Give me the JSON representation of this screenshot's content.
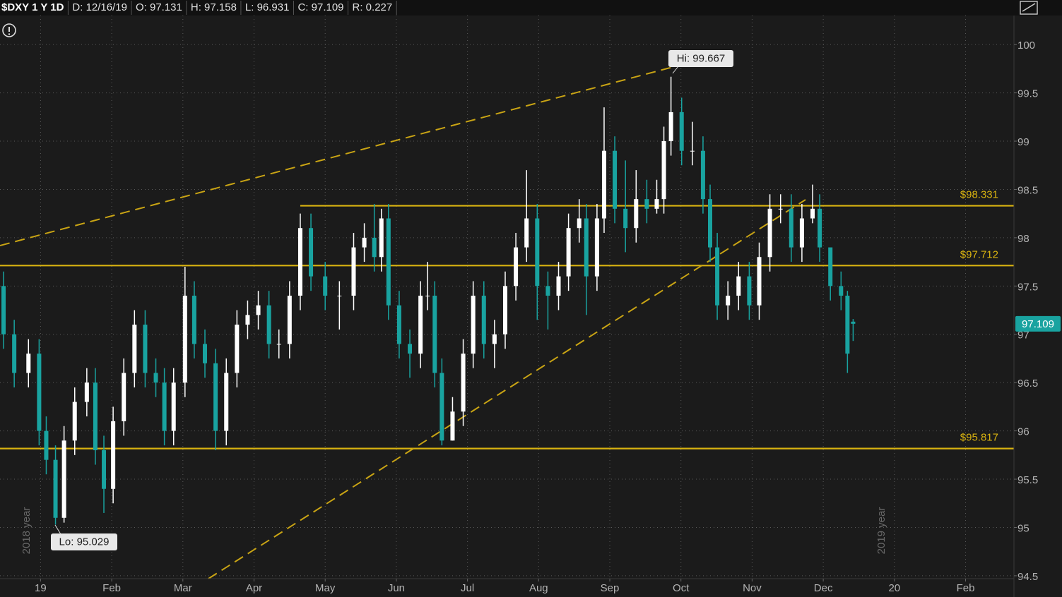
{
  "chart_data": {
    "type": "candlestick",
    "info": [
      "$DXY 1 Y 1D",
      "D: 12/16/19",
      "O: 97.131",
      "H: 97.158",
      "L: 96.931",
      "C: 97.109",
      "R: 0.227"
    ],
    "annotations": [
      "Hi: 99.667",
      "Lo: 95.029",
      "2018 year",
      "2019 year"
    ],
    "xlim": [
      -0.57,
      13.68
    ],
    "ylim": [
      94.47,
      100.33
    ],
    "xticks": [
      {
        "value": 0,
        "label": "19"
      },
      {
        "value": 1,
        "label": "Feb"
      },
      {
        "value": 2,
        "label": "Mar"
      },
      {
        "value": 3,
        "label": "Apr"
      },
      {
        "value": 4,
        "label": "May"
      },
      {
        "value": 5,
        "label": "Jun"
      },
      {
        "value": 6,
        "label": "Jul"
      },
      {
        "value": 7,
        "label": "Aug"
      },
      {
        "value": 8,
        "label": "Sep"
      },
      {
        "value": 9,
        "label": "Oct"
      },
      {
        "value": 10,
        "label": "Nov"
      },
      {
        "value": 11,
        "label": "Dec"
      },
      {
        "value": 12,
        "label": "20"
      },
      {
        "value": 13,
        "label": "Feb"
      }
    ],
    "yticks": [
      94.5,
      95,
      95.5,
      96,
      96.5,
      97,
      97.5,
      98,
      98.5,
      99,
      99.5,
      100
    ],
    "grid": true,
    "up_color": "#ffffff",
    "down_color": "#19a3a0",
    "level_color": "#d9b310",
    "levels": [
      {
        "value": 98.331,
        "label": "$98.331",
        "start": 3.65
      },
      {
        "value": 97.712,
        "label": "$97.712"
      },
      {
        "value": 95.817,
        "label": "$95.817"
      }
    ],
    "x": [
      -0.52,
      -0.37,
      -0.17,
      -0.02,
      0.08,
      0.21,
      0.33,
      0.48,
      0.65,
      0.77,
      0.89,
      1.02,
      1.17,
      1.32,
      1.47,
      1.62,
      1.74,
      1.87,
      2.03,
      2.16,
      2.31,
      2.46,
      2.61,
      2.76,
      2.91,
      3.06,
      3.21,
      3.35,
      3.5,
      3.65,
      3.8,
      4.0,
      4.2,
      4.4,
      4.55,
      4.69,
      4.79,
      4.89,
      5.04,
      5.19,
      5.34,
      5.44,
      5.54,
      5.64,
      5.79,
      5.94,
      6.08,
      6.23,
      6.38,
      6.53,
      6.68,
      6.83,
      6.98,
      7.13,
      7.28,
      7.42,
      7.57,
      7.67,
      7.82,
      7.92,
      8.07,
      8.22,
      8.37,
      8.52,
      8.66,
      8.76,
      8.86,
      9.01,
      9.16,
      9.31,
      9.41,
      9.51,
      9.66,
      9.81,
      9.96,
      10.1,
      10.25,
      10.4,
      10.55,
      10.7,
      10.85,
      10.95,
      11.1,
      11.25,
      11.34,
      11.42
    ],
    "open": [
      97.5,
      97.0,
      96.6,
      96.8,
      96.0,
      95.7,
      95.1,
      95.9,
      96.3,
      96.5,
      95.8,
      95.4,
      96.1,
      96.6,
      97.1,
      96.6,
      96.5,
      96.0,
      96.5,
      97.4,
      96.9,
      96.7,
      96.0,
      96.6,
      97.1,
      97.2,
      97.3,
      96.9,
      96.9,
      97.4,
      98.1,
      97.6,
      97.4,
      97.4,
      97.9,
      98.0,
      97.8,
      98.2,
      97.3,
      96.9,
      96.8,
      97.4,
      97.4,
      96.6,
      95.9,
      96.2,
      96.8,
      97.4,
      96.9,
      97.0,
      97.5,
      97.9,
      98.2,
      97.5,
      97.4,
      97.6,
      98.1,
      98.2,
      97.6,
      98.2,
      98.9,
      98.3,
      98.1,
      98.4,
      98.3,
      98.4,
      99.0,
      99.3,
      98.9,
      98.9,
      98.4,
      97.9,
      97.3,
      97.4,
      97.6,
      97.3,
      97.8,
      98.3,
      98.3,
      97.9,
      98.2,
      98.3,
      97.9,
      97.5,
      97.4,
      97.131
    ],
    "high": [
      97.65,
      97.15,
      96.95,
      96.95,
      96.15,
      95.85,
      96.05,
      96.45,
      96.65,
      96.65,
      95.95,
      96.25,
      96.75,
      97.25,
      97.25,
      96.75,
      96.65,
      96.65,
      97.7,
      97.55,
      97.05,
      96.85,
      96.75,
      97.25,
      97.35,
      97.45,
      97.45,
      97.05,
      97.55,
      98.25,
      98.25,
      97.75,
      97.55,
      98.05,
      98.15,
      98.35,
      98.3,
      98.35,
      97.45,
      97.05,
      97.55,
      97.75,
      97.55,
      96.75,
      96.35,
      96.95,
      97.55,
      97.55,
      97.15,
      97.65,
      98.05,
      98.7,
      98.35,
      97.65,
      97.75,
      98.25,
      98.4,
      98.35,
      98.35,
      99.35,
      99.05,
      98.8,
      98.7,
      98.6,
      98.6,
      99.15,
      99.667,
      99.45,
      99.2,
      99.05,
      98.55,
      98.05,
      97.55,
      97.75,
      97.75,
      97.95,
      98.45,
      98.45,
      98.45,
      98.35,
      98.55,
      98.45,
      97.85,
      97.65,
      97.45,
      97.158
    ],
    "low": [
      96.85,
      96.45,
      96.45,
      95.85,
      95.55,
      95.029,
      95.05,
      95.75,
      96.15,
      95.65,
      95.15,
      95.25,
      95.95,
      96.45,
      96.45,
      96.35,
      95.85,
      95.85,
      96.35,
      96.75,
      96.55,
      95.8,
      95.85,
      96.45,
      96.95,
      97.05,
      96.75,
      96.75,
      96.75,
      97.25,
      97.45,
      97.25,
      97.05,
      97.25,
      97.75,
      97.65,
      97.65,
      97.15,
      96.75,
      96.55,
      96.65,
      97.25,
      96.45,
      95.85,
      95.9,
      96.05,
      96.65,
      96.75,
      96.65,
      96.85,
      97.35,
      97.75,
      97.15,
      97.05,
      97.25,
      97.45,
      97.95,
      97.2,
      97.45,
      98.05,
      98.15,
      97.85,
      97.95,
      98.15,
      98.25,
      98.25,
      98.85,
      98.75,
      98.75,
      98.25,
      97.75,
      97.15,
      97.15,
      97.25,
      97.15,
      97.15,
      97.65,
      98.15,
      97.75,
      97.75,
      98.15,
      97.75,
      97.35,
      97.25,
      96.6,
      96.931
    ],
    "close": [
      97.0,
      96.6,
      96.8,
      96.0,
      95.7,
      95.1,
      95.9,
      96.3,
      96.5,
      95.8,
      95.4,
      96.1,
      96.6,
      97.1,
      96.6,
      96.5,
      96.0,
      96.5,
      97.4,
      96.9,
      96.7,
      96.0,
      96.6,
      97.1,
      97.2,
      97.3,
      96.9,
      96.9,
      97.4,
      98.1,
      97.6,
      97.4,
      97.4,
      97.9,
      98.0,
      97.8,
      98.2,
      97.3,
      96.9,
      96.8,
      97.4,
      97.4,
      96.6,
      95.9,
      96.2,
      96.8,
      97.4,
      96.9,
      97.0,
      97.5,
      97.9,
      98.2,
      97.5,
      97.4,
      97.6,
      98.1,
      98.2,
      97.6,
      98.2,
      98.9,
      98.3,
      98.1,
      98.4,
      98.3,
      98.4,
      99.0,
      99.3,
      98.9,
      98.9,
      98.4,
      97.9,
      97.3,
      97.4,
      97.6,
      97.3,
      97.8,
      98.3,
      98.3,
      97.9,
      98.2,
      98.3,
      97.9,
      97.5,
      97.4,
      96.8,
      97.109
    ]
  }
}
